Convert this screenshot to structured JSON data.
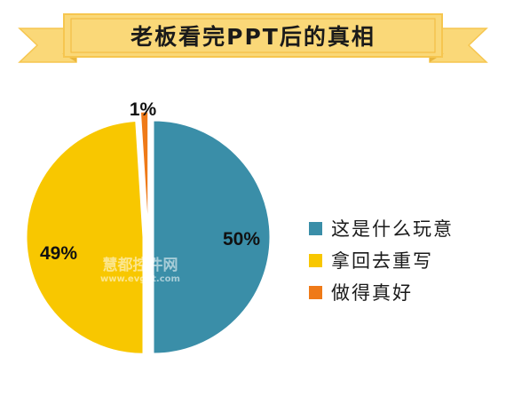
{
  "banner": {
    "title": "老板看完PPT后的真相"
  },
  "colors": {
    "banner_fill": "#fad878",
    "banner_border": "#f6c64f",
    "banner_fold": "#e9b63d",
    "background": "#ffffff"
  },
  "chart_data": {
    "type": "pie",
    "title": "老板看完PPT后的真相",
    "slices": [
      {
        "name": "这是什么玩意",
        "value": 50,
        "label": "50%",
        "color": "#3a8ea8"
      },
      {
        "name": "拿回去重写",
        "value": 49,
        "label": "49%",
        "color": "#f8c700"
      },
      {
        "name": "做得真好",
        "value": 1,
        "label": "1%",
        "color": "#ef7a18"
      }
    ],
    "exploded": true,
    "legend_position": "right"
  },
  "watermark": {
    "main": "慧都控件网",
    "sub": "www.evget.com"
  }
}
